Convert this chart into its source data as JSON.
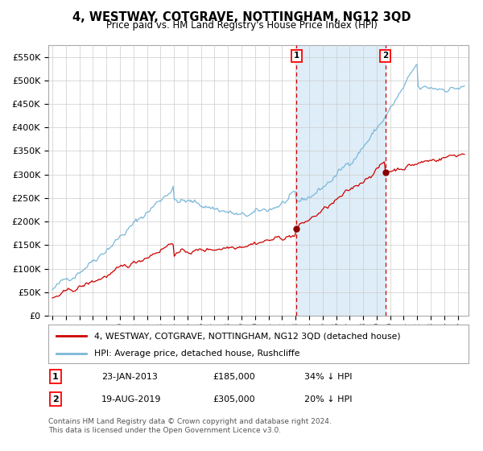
{
  "title": "4, WESTWAY, COTGRAVE, NOTTINGHAM, NG12 3QD",
  "subtitle": "Price paid vs. HM Land Registry's House Price Index (HPI)",
  "hpi_label": "HPI: Average price, detached house, Rushcliffe",
  "property_label": "4, WESTWAY, COTGRAVE, NOTTINGHAM, NG12 3QD (detached house)",
  "transaction1": {
    "date": "23-JAN-2013",
    "price": 185000,
    "pct": "34%",
    "dir": "↓",
    "label": "1"
  },
  "transaction2": {
    "date": "19-AUG-2019",
    "price": 305000,
    "pct": "20%",
    "dir": "↓",
    "label": "2"
  },
  "hpi_color": "#7ab8d9",
  "property_color": "#cc0000",
  "marker_color": "#880000",
  "shade_color": "#deedf7",
  "vline_color": "#cc0000",
  "grid_color": "#cccccc",
  "background_color": "#ffffff",
  "ylim": [
    0,
    575000
  ],
  "yticks": [
    0,
    50000,
    100000,
    150000,
    200000,
    250000,
    300000,
    350000,
    400000,
    450000,
    500000,
    550000
  ],
  "ytick_labels": [
    "£0",
    "£50K",
    "£100K",
    "£150K",
    "£200K",
    "£250K",
    "£300K",
    "£350K",
    "£400K",
    "£450K",
    "£500K",
    "£550K"
  ],
  "copyright_text": "Contains HM Land Registry data © Crown copyright and database right 2024.\nThis data is licensed under the Open Government Licence v3.0.",
  "year_start": 1995.0,
  "year_end": 2025.5,
  "trans1_year": 2013.07,
  "trans2_year": 2019.64,
  "fig_width": 6.0,
  "fig_height": 5.6,
  "dpi": 100
}
